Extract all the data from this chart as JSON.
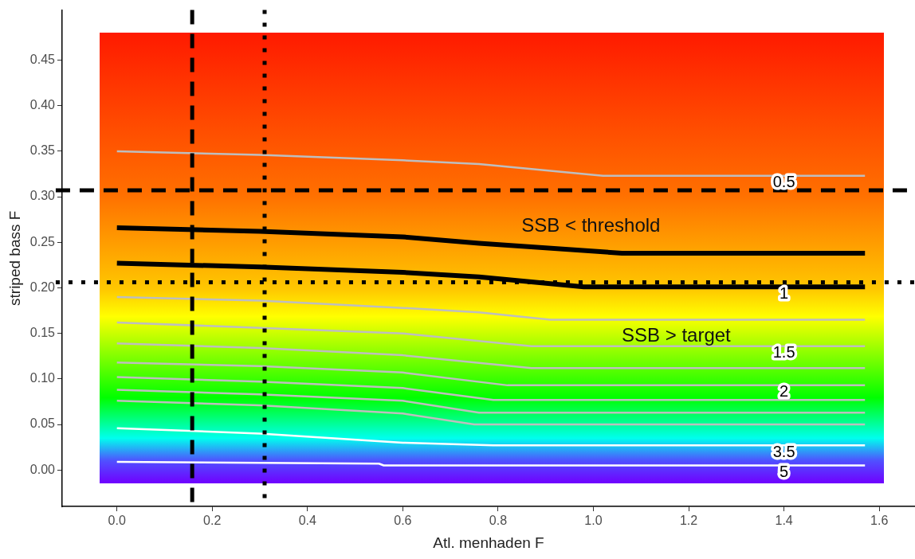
{
  "chart_data": {
    "type": "line",
    "xlabel": "Atl. menhaden F",
    "ylabel": "striped bass F",
    "xlim": [
      -0.115,
      1.675
    ],
    "xticks": [
      {
        "value": 0,
        "label": "0.0"
      },
      0.2,
      0.4,
      0.6,
      0.8,
      {
        "value": 1,
        "label": "1.0"
      },
      1.2,
      1.4,
      1.6
    ],
    "ylim": [
      -0.04,
      0.505
    ],
    "yticks": [
      {
        "value": 0,
        "label": "0.00"
      },
      0.05,
      {
        "value": 0.1,
        "label": "0.10"
      },
      0.15,
      {
        "value": 0.2,
        "label": "0.20"
      },
      0.25,
      {
        "value": 0.3,
        "label": "0.30"
      },
      0.35,
      {
        "value": 0.4,
        "label": "0.40"
      },
      0.45
    ],
    "grid": false,
    "legend": false,
    "marker": "none",
    "series": [
      {
        "name": "0.5",
        "color": "#bebebe",
        "x": [
          0,
          0.3,
          0.6,
          0.76,
          1.02,
          1.57
        ],
        "values": [
          0.35,
          0.346,
          0.34,
          0.336,
          0.323,
          0.323
        ]
      },
      {
        "color": "#000000",
        "x": [
          0,
          0.3,
          0.6,
          0.76,
          1.06,
          1.57
        ],
        "values": [
          0.266,
          0.262,
          0.256,
          0.249,
          0.238,
          0.238
        ]
      },
      {
        "name": "1",
        "color": "#000000",
        "x": [
          0,
          0.3,
          0.6,
          0.76,
          0.98,
          1.57
        ],
        "values": [
          0.227,
          0.223,
          0.217,
          0.212,
          0.201,
          0.201
        ]
      },
      {
        "color": "#bebebe",
        "x": [
          0,
          0.3,
          0.6,
          0.76,
          0.91,
          1.57
        ],
        "values": [
          0.19,
          0.186,
          0.178,
          0.173,
          0.165,
          0.165
        ]
      },
      {
        "name": "1.5",
        "color": "#bebebe",
        "x": [
          0,
          0.3,
          0.6,
          0.87,
          1.57
        ],
        "values": [
          0.162,
          0.156,
          0.15,
          0.136,
          0.136
        ]
      },
      {
        "color": "#bebebe",
        "x": [
          0,
          0.3,
          0.6,
          0.87,
          1.57
        ],
        "values": [
          0.139,
          0.134,
          0.126,
          0.112,
          0.112
        ]
      },
      {
        "name": "2",
        "color": "#bebebe",
        "x": [
          0,
          0.3,
          0.6,
          0.82,
          1.57
        ],
        "values": [
          0.118,
          0.114,
          0.107,
          0.093,
          0.093
        ]
      },
      {
        "color": "#bebebe",
        "x": [
          0,
          0.3,
          0.6,
          0.79,
          1.57
        ],
        "values": [
          0.102,
          0.097,
          0.09,
          0.077,
          0.077
        ]
      },
      {
        "color": "#bebebe",
        "x": [
          0,
          0.3,
          0.6,
          0.76,
          1.57
        ],
        "values": [
          0.088,
          0.083,
          0.076,
          0.063,
          0.063
        ]
      },
      {
        "color": "#bebebe",
        "x": [
          0,
          0.3,
          0.6,
          0.75,
          1.57
        ],
        "values": [
          0.076,
          0.071,
          0.062,
          0.05,
          0.05
        ]
      },
      {
        "name": "3.5",
        "color": "#ffffff",
        "x": [
          0,
          0.3,
          0.6,
          0.79,
          1.57
        ],
        "values": [
          0.046,
          0.04,
          0.03,
          0.027,
          0.027
        ]
      },
      {
        "name": "5",
        "color": "#ffffff",
        "x": [
          0,
          0.55,
          0.56,
          1.57
        ],
        "values": [
          0.009,
          0.007,
          0.005,
          0.005
        ]
      }
    ],
    "ref_lines": [
      {
        "axis": "x",
        "value": 0.158,
        "color": "#000000",
        "line_style": "dashed"
      },
      {
        "axis": "x",
        "value": 0.31,
        "color": "#000000",
        "line_style": "dotted"
      },
      {
        "axis": "y",
        "value": 0.307,
        "color": "#000000",
        "line_style": "dashed"
      },
      {
        "axis": "y",
        "value": 0.206,
        "color": "#000000",
        "line_style": "dotted"
      }
    ],
    "annotations": [
      "SSB < threshold",
      "SSB > target"
    ]
  }
}
